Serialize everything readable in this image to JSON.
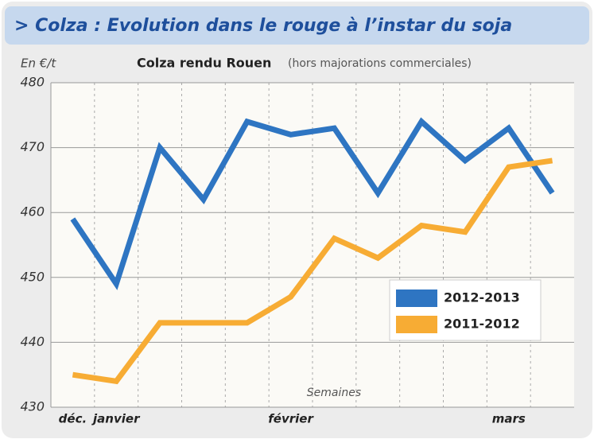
{
  "chart_data": {
    "type": "line",
    "title": "> Colza : Evolution dans le rouge à l’instar du soja",
    "subtitle": "Colza rendu Rouen",
    "subtitle_note": "(hors majorations commerciales)",
    "y_label": "En €/t",
    "x_label": "Semaines",
    "categories": [
      "déc.",
      "janvier",
      null,
      null,
      null,
      "février",
      null,
      null,
      null,
      null,
      "mars",
      null
    ],
    "series": [
      {
        "name": "2012-2013",
        "color": "#2e75c2",
        "values": [
          459,
          449,
          470,
          462,
          474,
          472,
          473,
          463,
          474,
          468,
          473,
          463
        ]
      },
      {
        "name": "2011-2012",
        "color": "#f7ac34",
        "values": [
          435,
          434,
          443,
          443,
          443,
          447,
          456,
          453,
          458,
          457,
          467,
          468
        ]
      }
    ],
    "ylim": [
      430,
      480
    ],
    "yticks": [
      430,
      440,
      450,
      460,
      470,
      480
    ],
    "grid": true
  }
}
